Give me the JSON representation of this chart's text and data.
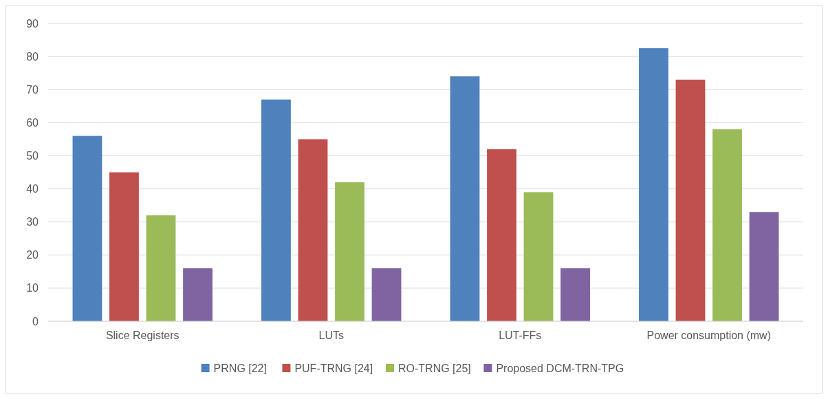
{
  "chart_data": {
    "type": "bar",
    "categories": [
      "Slice Registers",
      "LUTs",
      "LUT-FFs",
      "Power consumption (mw)"
    ],
    "series": [
      {
        "name": "PRNG [22]",
        "color": "#4f81bd",
        "values": [
          56,
          67,
          74,
          82.5
        ]
      },
      {
        "name": "PUF-TRNG [24]",
        "color": "#c0504d",
        "values": [
          45,
          55,
          52,
          73
        ]
      },
      {
        "name": "RO-TRNG [25]",
        "color": "#9bbb59",
        "values": [
          32,
          42,
          39,
          58
        ]
      },
      {
        "name": "Proposed DCM-TRN-TPG",
        "color": "#8064a2",
        "values": [
          16,
          16,
          16,
          33
        ]
      }
    ],
    "ylim": [
      0,
      90
    ],
    "yticks": [
      0,
      10,
      20,
      30,
      40,
      50,
      60,
      70,
      80,
      90
    ],
    "grid": "y",
    "legend": "bottom"
  }
}
